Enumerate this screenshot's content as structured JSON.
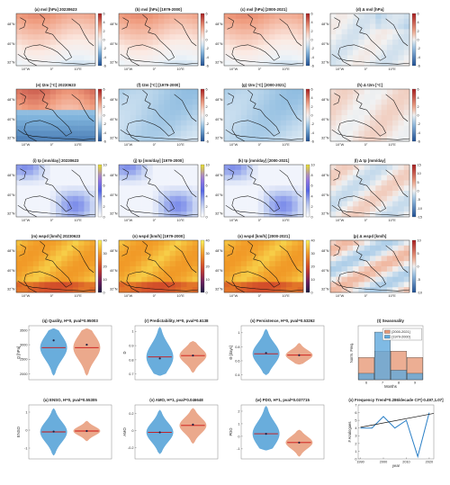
{
  "maps": {
    "lon_ticks": [
      "10°W",
      "0°",
      "10°E"
    ],
    "lat_ticks": [
      "48°N",
      "40°N",
      "32°N"
    ],
    "rows": [
      {
        "titles": [
          "(a) msl [hPa] 20230623",
          "(b) msl [hPa] [1979-2000]",
          "(c) msl [hPa] [2000-2021]",
          "(d) Δ msl [hPa]"
        ],
        "colorbar_ticks": [
          "6",
          "4",
          "2",
          "0",
          "-2",
          "-4",
          "-6"
        ],
        "delta_colorbar_ticks": [
          "6",
          "4",
          "2",
          "0",
          "-2",
          "-4",
          "-6"
        ],
        "palette": "redblue",
        "fields": [
          "warm_north",
          "warm_north",
          "warm_north",
          "near_zero"
        ]
      },
      {
        "titles": [
          "(e) t2m [°C] 20230623",
          "(f) t2m [°C] [1979-2000]",
          "(g) t2m [°C] [2000-2021]",
          "(h) Δ t2m [°C]"
        ],
        "colorbar_ticks": [
          "6",
          "4",
          "2",
          "0",
          "-2",
          "-4",
          "-6"
        ],
        "delta_colorbar_ticks": [
          "6",
          "4",
          "2",
          "0",
          "-2",
          "-4",
          "-6"
        ],
        "palette": "redblue",
        "fields": [
          "warm_north_cold_south",
          "cool",
          "cool",
          "slight_warm"
        ]
      },
      {
        "titles": [
          "(i) tp [mm/day] 20230623",
          "(j) tp [mm/day] [1979-2000]",
          "(k) tp [mm/day] [2000-2021]",
          "(l) Δ tp [mm/day]"
        ],
        "colorbar_ticks": [
          "10",
          "8",
          "6",
          "4",
          "2",
          "0"
        ],
        "delta_colorbar_ticks": [
          "15",
          "10",
          "5",
          "0",
          "-5",
          "-10",
          "-15"
        ],
        "palette": "precip",
        "fields": [
          "precip",
          "precip",
          "precip",
          "precip_delta"
        ]
      },
      {
        "titles": [
          "(m) wspd [km/h] 20230623",
          "(n) wspd [km/h] [1979-2000]",
          "(o) wspd [km/h] [2000-2021]",
          "(p) Δ wspd [km/h]"
        ],
        "colorbar_ticks": [
          "40",
          "30",
          "20",
          "10",
          "0"
        ],
        "delta_colorbar_ticks": [
          "10",
          "5",
          "0",
          "-5",
          "-10"
        ],
        "palette": "wind",
        "fields": [
          "wind",
          "wind",
          "wind",
          "wind_delta"
        ]
      }
    ]
  },
  "chart_data": [
    {
      "type": "violin",
      "title": "(q) Quality, H=0, pval=0.95003",
      "ylabel": "Q [hPa]",
      "yticks": [
        "3500",
        "3000",
        "2500",
        "2000"
      ],
      "ylim": [
        1800,
        3650
      ],
      "series": [
        {
          "name": "[2000-2021]",
          "min": 1950,
          "max": 3550,
          "median": 2900,
          "mean": 3150,
          "color": "#4f9fd6"
        },
        {
          "name": "[1979-2000]",
          "min": 1950,
          "max": 3550,
          "median": 2900,
          "mean": 3000,
          "color": "#e79a78"
        }
      ]
    },
    {
      "type": "violin",
      "title": "(r) Predictability, H=0, pval=0.6138",
      "ylabel": "D",
      "yticks": [
        "1",
        "0.9",
        "0.8",
        "0.7"
      ],
      "ylim": [
        0.66,
        1.04
      ],
      "series": [
        {
          "name": "[2000-2021]",
          "min": 0.69,
          "max": 1.03,
          "median": 0.82,
          "mean": 0.81,
          "color": "#4f9fd6"
        },
        {
          "name": "[1979-2000]",
          "min": 0.71,
          "max": 0.93,
          "median": 0.83,
          "mean": 0.83,
          "color": "#e79a78"
        }
      ]
    },
    {
      "type": "violin",
      "title": "(s) Persistence, H=0, pval=0.53262",
      "ylabel": "Θ [days]",
      "yticks": [
        "1",
        "0.8",
        "0.6",
        "0.4"
      ],
      "ylim": [
        0.33,
        1.1
      ],
      "series": [
        {
          "name": "[2000-2021]",
          "min": 0.4,
          "max": 1.05,
          "median": 0.7,
          "mean": 0.71,
          "color": "#4f9fd6"
        },
        {
          "name": "[1979-2000]",
          "min": 0.55,
          "max": 0.85,
          "median": 0.68,
          "mean": 0.68,
          "color": "#e79a78"
        }
      ]
    },
    {
      "type": "bar",
      "title": "(t) Seasonality",
      "xlabel": "Months",
      "ylabel": "Norm. Freq.",
      "categories": [
        "6",
        "7",
        "8",
        "9"
      ],
      "legend": "top-right",
      "series": [
        {
          "name": "[2000-2021]",
          "values": [
            0.35,
            0.45,
            0.45,
            0.35
          ],
          "color": "#e79a78"
        },
        {
          "name": "[1979-2000]",
          "values": [
            0.1,
            0.75,
            0.15,
            0.1
          ],
          "color": "#5fa9dd"
        }
      ]
    },
    {
      "type": "violin",
      "title": "(u) ENSO, H=0, pval=0.55305",
      "ylabel": "ENSO",
      "yticks": [
        "1",
        "0",
        "-1"
      ],
      "ylim": [
        -1.6,
        1.4
      ],
      "series": [
        {
          "name": "[2000-2021]",
          "min": -1.4,
          "max": 1.2,
          "median": -0.1,
          "mean": -0.08,
          "color": "#4f9fd6"
        },
        {
          "name": "[1979-2000]",
          "min": -0.6,
          "max": 0.5,
          "median": -0.05,
          "mean": -0.05,
          "color": "#e79a78"
        }
      ]
    },
    {
      "type": "violin",
      "title": "(v) AMO, H=1, pval=0.046648",
      "ylabel": "AMO",
      "yticks": [
        "0.2",
        "0",
        "-0.2"
      ],
      "ylim": [
        -0.33,
        0.3
      ],
      "series": [
        {
          "name": "[2000-2021]",
          "min": -0.27,
          "max": 0.24,
          "median": -0.02,
          "mean": -0.02,
          "color": "#4f9fd6"
        },
        {
          "name": "[1979-2000]",
          "min": -0.15,
          "max": 0.26,
          "median": 0.06,
          "mean": 0.07,
          "color": "#e79a78"
        }
      ]
    },
    {
      "type": "violin",
      "title": "(w) PDO, H=1, pval=0.037715",
      "ylabel": "PDO",
      "yticks": [
        "2",
        "1",
        "0",
        "-1"
      ],
      "ylim": [
        -1.8,
        2.5
      ],
      "series": [
        {
          "name": "[2000-2021]",
          "min": -1.1,
          "max": 2.4,
          "median": 0.2,
          "mean": 0.2,
          "color": "#4f9fd6"
        },
        {
          "name": "[1979-2000]",
          "min": -1.6,
          "max": 0.5,
          "median": -0.5,
          "mean": -0.5,
          "color": "#e79a78"
        }
      ]
    },
    {
      "type": "line",
      "title": "(x) Frequency Trend=0.286/decade CI=[-0.497,1.07]",
      "xlabel": "year",
      "ylabel": "# Analogues",
      "xticks": [
        "1990",
        "2000",
        "2010",
        "2020"
      ],
      "yticks": [
        "0",
        "1",
        "2",
        "3",
        "4",
        "5",
        "6",
        "7"
      ],
      "xlim": [
        1989,
        2022
      ],
      "ylim": [
        0,
        7
      ],
      "x": [
        1990,
        1995,
        2000,
        2005,
        2010,
        2015,
        2020
      ],
      "y": [
        4,
        4,
        5.5,
        4,
        5,
        0.3,
        6
      ],
      "trend": [
        [
          1990,
          4.1
        ],
        [
          2022,
          5.9
        ]
      ]
    }
  ]
}
